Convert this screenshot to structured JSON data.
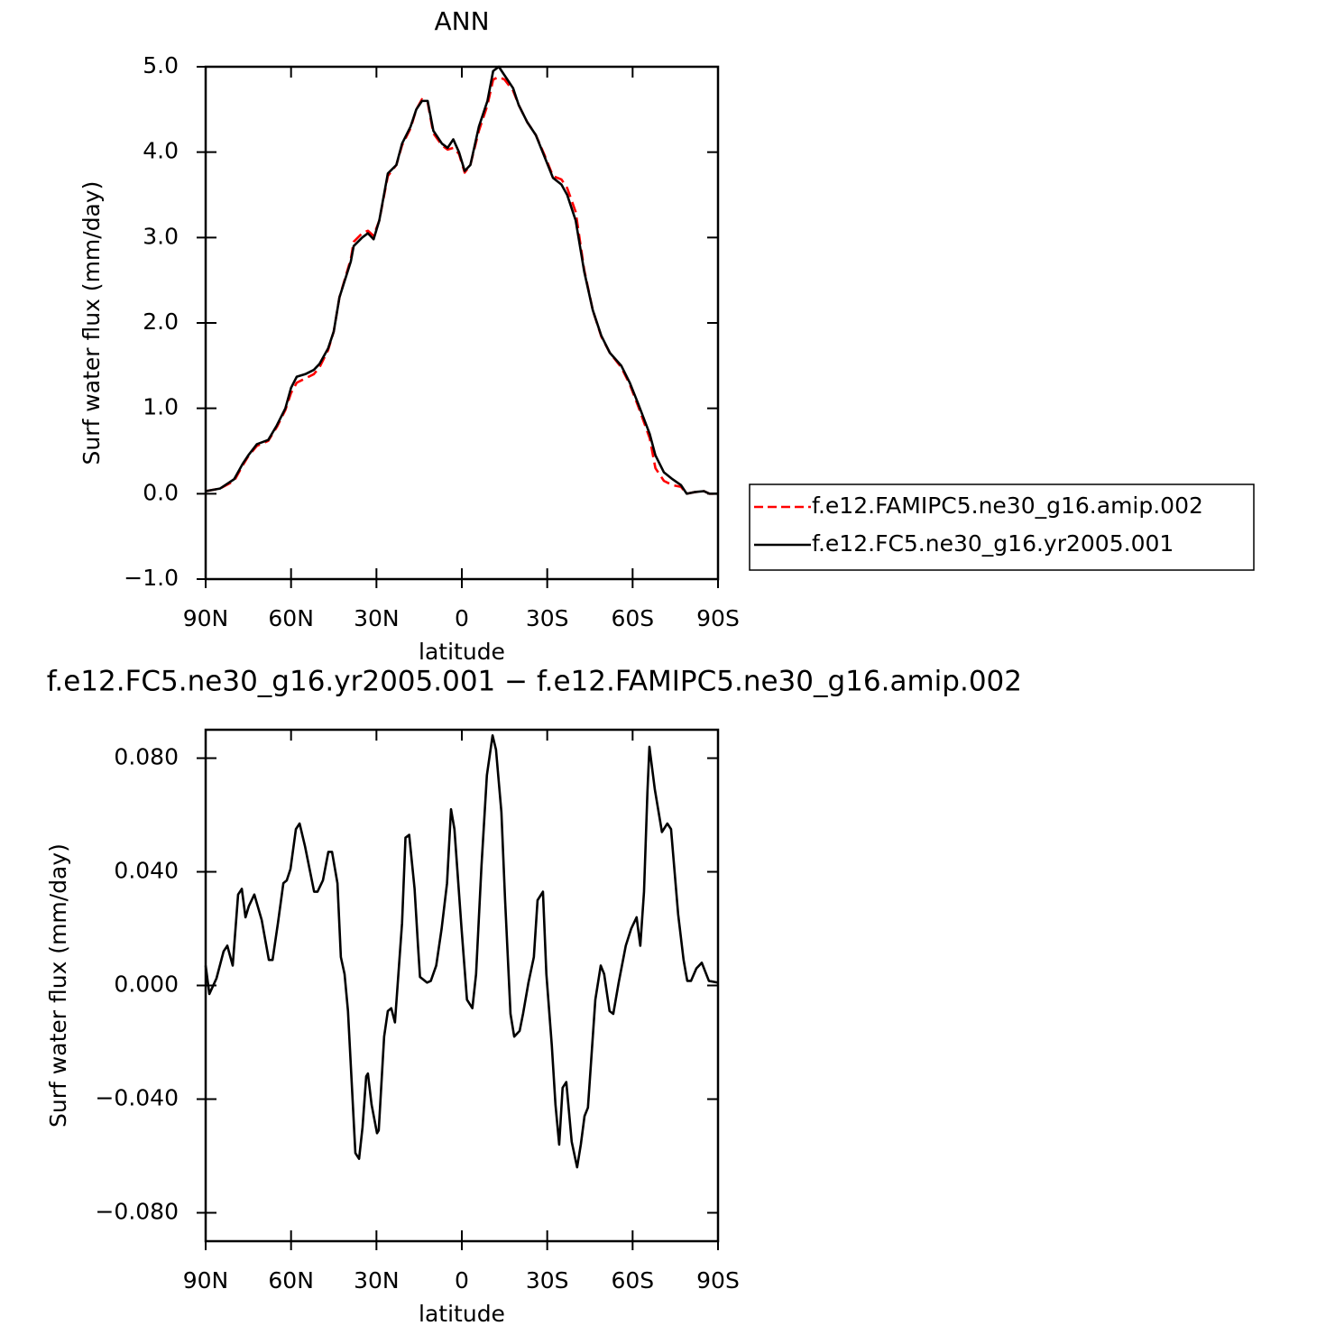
{
  "chart_data": [
    {
      "type": "line",
      "title": "ANN",
      "xlabel": "latitude",
      "ylabel": "Surf water flux (mm/day)",
      "x": [
        90,
        85,
        80,
        77,
        75,
        72,
        68,
        65,
        62,
        60,
        58,
        55,
        52,
        50,
        47,
        45,
        43,
        39,
        38,
        35,
        33,
        31,
        29,
        26,
        23,
        21,
        18,
        16,
        14,
        12,
        10,
        7,
        5,
        3,
        1,
        -1,
        -3,
        -6,
        -9,
        -11,
        -13,
        -15,
        -18,
        -20,
        -23,
        -26,
        -29,
        -32,
        -35,
        -37,
        -40,
        -43,
        -46,
        -49,
        -52,
        -56,
        -59,
        -62,
        -66,
        -68,
        -71,
        -74,
        -77,
        -79,
        -82,
        -85,
        -87,
        -90
      ],
      "series": [
        {
          "name": "f.e12.FAMIPC5.ne30_g16.amip.002",
          "color": "#ff0000",
          "dashed": true,
          "values": [
            0.03,
            0.06,
            0.15,
            0.33,
            0.44,
            0.56,
            0.62,
            0.78,
            0.98,
            1.18,
            1.3,
            1.35,
            1.4,
            1.48,
            1.68,
            1.9,
            2.3,
            2.75,
            2.95,
            3.05,
            3.08,
            3.02,
            3.2,
            3.72,
            3.85,
            4.08,
            4.28,
            4.5,
            4.62,
            4.58,
            4.22,
            4.08,
            4.03,
            4.05,
            3.98,
            3.76,
            3.85,
            4.25,
            4.55,
            4.85,
            4.88,
            4.85,
            4.72,
            4.55,
            4.35,
            4.2,
            3.97,
            3.72,
            3.68,
            3.58,
            3.3,
            2.62,
            2.15,
            1.84,
            1.65,
            1.48,
            1.28,
            1.02,
            0.65,
            0.3,
            0.15,
            0.1,
            0.08,
            0.0,
            0.02,
            0.03,
            0.0,
            0.0
          ]
        },
        {
          "name": "f.e12.FC5.ne30_g16.yr2005.001",
          "color": "#000000",
          "dashed": false,
          "values": [
            0.03,
            0.06,
            0.17,
            0.35,
            0.45,
            0.58,
            0.63,
            0.8,
            1.0,
            1.24,
            1.37,
            1.4,
            1.45,
            1.52,
            1.7,
            1.9,
            2.3,
            2.72,
            2.9,
            3.0,
            3.05,
            2.98,
            3.2,
            3.75,
            3.85,
            4.1,
            4.3,
            4.5,
            4.6,
            4.6,
            4.25,
            4.1,
            4.05,
            4.15,
            4.0,
            3.78,
            3.85,
            4.3,
            4.6,
            4.95,
            5.0,
            4.9,
            4.75,
            4.55,
            4.35,
            4.2,
            3.95,
            3.7,
            3.62,
            3.5,
            3.2,
            2.6,
            2.15,
            1.85,
            1.65,
            1.5,
            1.3,
            1.05,
            0.7,
            0.45,
            0.25,
            0.17,
            0.1,
            0.0,
            0.02,
            0.03,
            0.0,
            0.0
          ]
        }
      ],
      "xlim": [
        90,
        -90
      ],
      "xticks": [
        {
          "value": 90,
          "label": "90N"
        },
        {
          "value": 60,
          "label": "60N"
        },
        {
          "value": 30,
          "label": "30N"
        },
        0,
        {
          "value": -30,
          "label": "30S"
        },
        {
          "value": -60,
          "label": "60S"
        },
        {
          "value": -90,
          "label": "90S"
        }
      ],
      "ylim": [
        -1,
        5
      ],
      "yticks": [
        {
          "value": -1,
          "label": "−1.0"
        },
        {
          "value": 0,
          "label": "0.0"
        },
        {
          "value": 1,
          "label": "1.0"
        },
        {
          "value": 2,
          "label": "2.0"
        },
        {
          "value": 3,
          "label": "3.0"
        },
        {
          "value": 4,
          "label": "4.0"
        },
        {
          "value": 5,
          "label": "5.0"
        }
      ],
      "legend": "right"
    },
    {
      "type": "line",
      "title": "f.e12.FC5.ne30_g16.yr2005.001 − f.e12.FAMIPC5.ne30_g16.amip.002",
      "xlabel": "latitude",
      "ylabel": "Surf water flux (mm/day)",
      "x": [
        90,
        88.7,
        86.2,
        83.7,
        82.4,
        80.5,
        78.6,
        77.3,
        76,
        74.8,
        72.9,
        70.3,
        67.8,
        66.5,
        64.6,
        62.7,
        61.5,
        60.2,
        58.3,
        57,
        55.1,
        51.9,
        50.7,
        48.8,
        46.9,
        45.6,
        43.7,
        42.5,
        41.2,
        40,
        38.7,
        37.4,
        36.1,
        34.9,
        33.6,
        33,
        31.7,
        29.8,
        29.2,
        27.3,
        26,
        24.8,
        23.5,
        21,
        19.8,
        18.5,
        16.6,
        15.4,
        14.7,
        12.2,
        10.9,
        9,
        7.1,
        5.2,
        3.8,
        2.6,
        0.1,
        -1.8,
        -3.7,
        -5,
        -6.9,
        -8.8,
        -10.8,
        -12,
        -13.9,
        -15.2,
        -17.1,
        -18.4,
        -20.3,
        -21.5,
        -23.4,
        -25.3,
        -26.6,
        -28.5,
        -29.7,
        -31.6,
        -32.9,
        -34.2,
        -35.4,
        -36.7,
        -38.6,
        -40.5,
        -41.8,
        -43.1,
        -44.3,
        -46.9,
        -48.8,
        -50,
        -51.9,
        -53.2,
        -55.1,
        -57.6,
        -59.5,
        -61.4,
        -62.7,
        -64,
        -65.2,
        -65.9,
        -67.8,
        -70.3,
        -72.2,
        -73.5,
        -76,
        -77.9,
        -79.2,
        -80.5,
        -82.4,
        -84.3,
        -86.8,
        -90
      ],
      "values": [
        0.007,
        -0.003,
        0.0025,
        0.012,
        0.014,
        0.007,
        0.032,
        0.034,
        0.024,
        0.028,
        0.032,
        0.023,
        0.009,
        0.009,
        0.022,
        0.036,
        0.037,
        0.041,
        0.055,
        0.057,
        0.049,
        0.033,
        0.033,
        0.037,
        0.047,
        0.047,
        0.036,
        0.01,
        0.004,
        -0.009,
        -0.034,
        -0.059,
        -0.061,
        -0.05,
        -0.032,
        -0.031,
        -0.042,
        -0.052,
        -0.051,
        -0.018,
        -0.009,
        -0.008,
        -0.013,
        0.022,
        0.052,
        0.053,
        0.034,
        0.014,
        0.003,
        0.001,
        0.0016,
        0.007,
        0.02,
        0.036,
        0.062,
        0.055,
        0.02,
        -0.005,
        -0.008,
        0.004,
        0.042,
        0.074,
        0.088,
        0.083,
        0.061,
        0.03,
        -0.01,
        -0.018,
        -0.016,
        -0.01,
        0.001,
        0.01,
        0.03,
        0.033,
        0.004,
        -0.021,
        -0.042,
        -0.056,
        -0.036,
        -0.034,
        -0.055,
        -0.064,
        -0.056,
        -0.046,
        -0.043,
        -0.005,
        0.007,
        0.004,
        -0.009,
        -0.01,
        0.001,
        0.014,
        0.02,
        0.024,
        0.014,
        0.033,
        0.068,
        0.084,
        0.069,
        0.054,
        0.057,
        0.055,
        0.025,
        0.009,
        0.0016,
        0.0016,
        0.006,
        0.008,
        0.0016,
        0.001
      ],
      "color": "#000000",
      "xlim": [
        90,
        -90
      ],
      "xticks": [
        {
          "value": 90,
          "label": "90N"
        },
        {
          "value": 60,
          "label": "60N"
        },
        {
          "value": 30,
          "label": "30N"
        },
        0,
        {
          "value": -30,
          "label": "30S"
        },
        {
          "value": -60,
          "label": "60S"
        },
        {
          "value": -90,
          "label": "90S"
        }
      ],
      "ylim": [
        -0.09,
        0.09
      ],
      "yticks": [
        {
          "value": -0.08,
          "label": "−0.080"
        },
        {
          "value": -0.04,
          "label": "−0.040"
        },
        {
          "value": 0,
          "label": "0.000"
        },
        {
          "value": 0.04,
          "label": "0.040"
        },
        {
          "value": 0.08,
          "label": "0.080"
        }
      ]
    }
  ]
}
